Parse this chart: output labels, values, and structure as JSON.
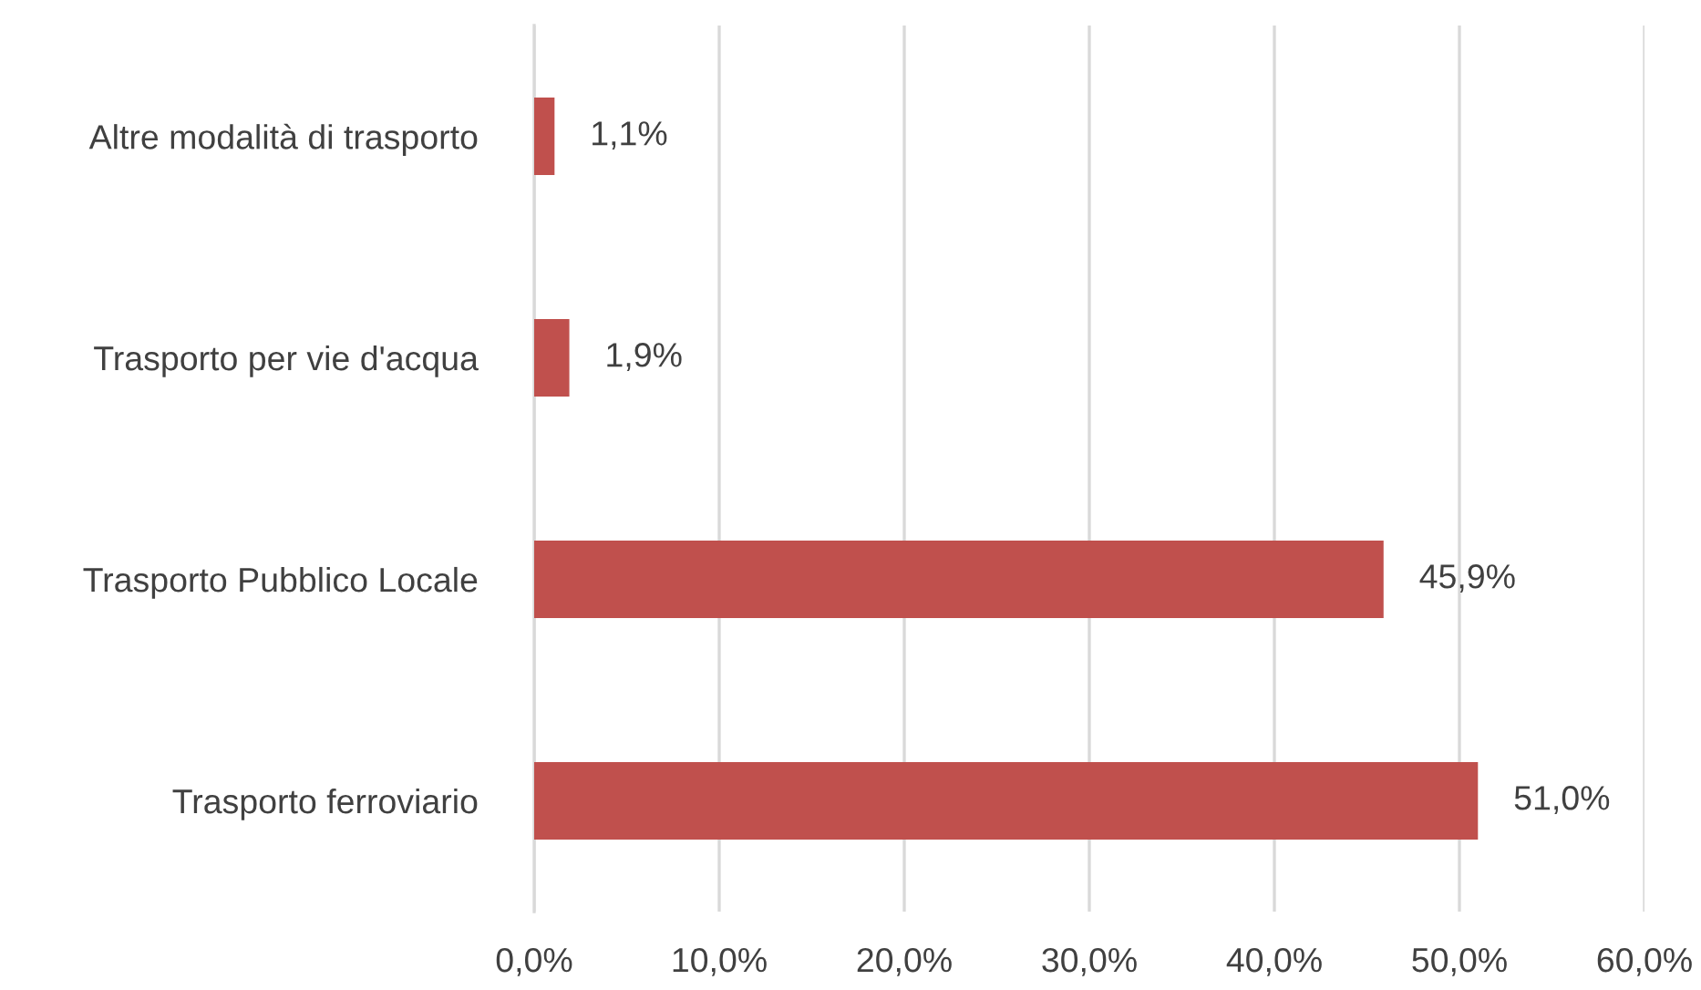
{
  "chart_data": {
    "type": "bar",
    "orientation": "horizontal",
    "categories": [
      "Altre modalità di trasporto",
      "Trasporto per vie d'acqua",
      "Trasporto Pubblico Locale",
      "Trasporto ferroviario"
    ],
    "values": [
      1.1,
      1.9,
      45.9,
      51.0
    ],
    "value_labels": [
      "1,1%",
      "1,9%",
      "45,9%",
      "51,0%"
    ],
    "color": "#c0504d",
    "xlim": [
      0,
      60
    ],
    "xticks": [
      {
        "value": 0,
        "label": "0,0%"
      },
      {
        "value": 10,
        "label": "10,0%"
      },
      {
        "value": 20,
        "label": "20,0%"
      },
      {
        "value": 30,
        "label": "30,0%"
      },
      {
        "value": 40,
        "label": "40,0%"
      },
      {
        "value": 50,
        "label": "50,0%"
      },
      {
        "value": 60,
        "label": "60,0%"
      }
    ],
    "grid": "x",
    "legend": false
  }
}
